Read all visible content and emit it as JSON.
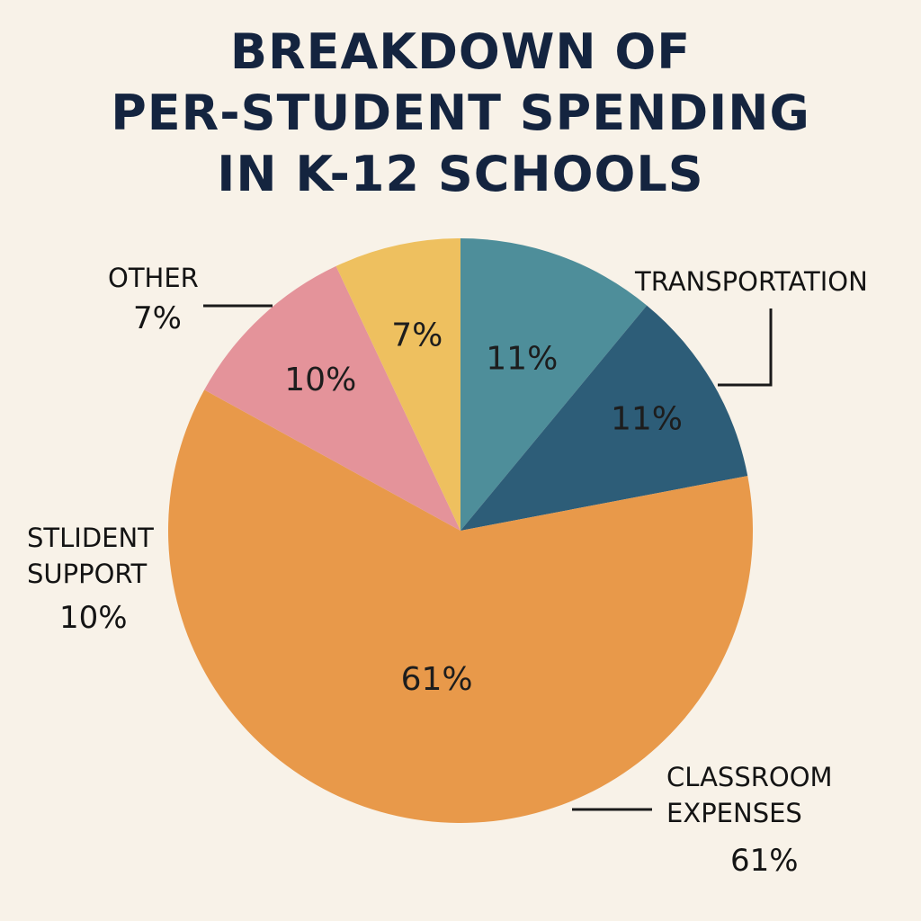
{
  "chart_data": {
    "type": "pie",
    "title_lines": [
      "BREAKDOWN OF",
      "PER-STUDENT SPENDING",
      "IN K-12 SCHOOLS"
    ],
    "slices": [
      {
        "id": "transportation-a",
        "value": 11,
        "label": "11%",
        "color": "#4e8e9a"
      },
      {
        "id": "transportation-b",
        "value": 11,
        "label": "11%",
        "color": "#2d5d78"
      },
      {
        "id": "classroom",
        "value": 61,
        "label": "61%",
        "color": "#e8994a"
      },
      {
        "id": "student-support",
        "value": 10,
        "label": "10%",
        "color": "#e4939a"
      },
      {
        "id": "other",
        "value": 7,
        "label": "7%",
        "color": "#eec05f"
      }
    ],
    "callouts": {
      "other": {
        "lines": [
          "OTHER"
        ],
        "pct": "7%"
      },
      "transportation": {
        "lines": [
          "TRANSPORTATION"
        ],
        "pct": ""
      },
      "student_support": {
        "lines": [
          "STLIDENT",
          "SUPPORT"
        ],
        "pct": "10%"
      },
      "classroom": {
        "lines": [
          "CLASSROOM",
          "EXPENSES"
        ],
        "pct": "61%"
      }
    }
  }
}
